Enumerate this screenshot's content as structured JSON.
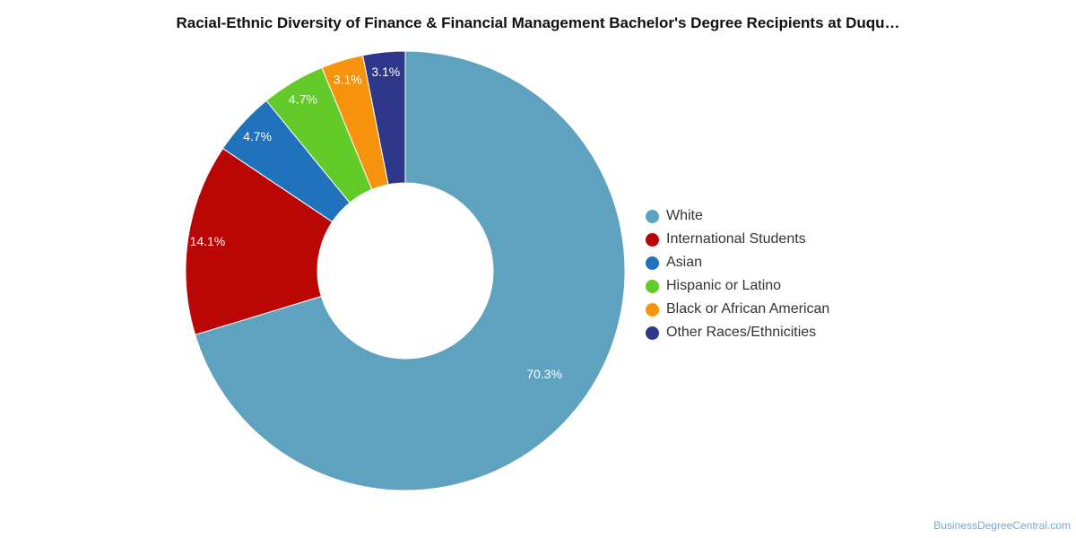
{
  "chart_data": {
    "type": "pie",
    "title": "Racial-Ethnic Diversity of Finance & Financial Management Bachelor's Degree Recipients at Duqu…",
    "donut": true,
    "legend_position": "right",
    "categories": [
      "White",
      "International Students",
      "Asian",
      "Hispanic or Latino",
      "Black or African American",
      "Other Races/Ethnicities"
    ],
    "values": [
      70.3,
      14.1,
      4.7,
      4.7,
      3.1,
      3.1
    ],
    "labels": [
      "70.3%",
      "14.1%",
      "4.7%",
      "4.7%",
      "3.1%",
      "3.1%"
    ],
    "colors": [
      "#5ea2bf",
      "#b90504",
      "#1f72bb",
      "#62cb29",
      "#f8930d",
      "#2e378a"
    ]
  },
  "credit": "BusinessDegreeCentral.com"
}
